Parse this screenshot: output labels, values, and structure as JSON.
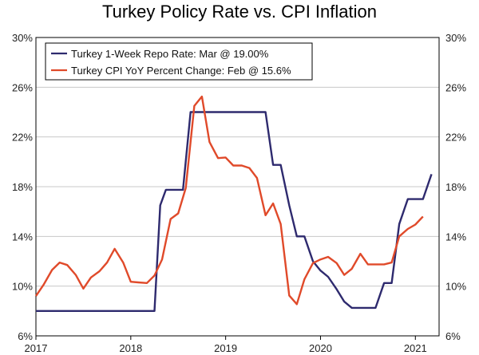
{
  "chart_data": {
    "type": "line",
    "title": "Turkey Policy Rate vs. CPI Inflation",
    "xlabel": "",
    "ylabel": "",
    "ylim": [
      6,
      30
    ],
    "yticks": [
      6,
      10,
      14,
      18,
      22,
      26,
      30
    ],
    "ytick_labels": [
      "6%",
      "10%",
      "14%",
      "18%",
      "22%",
      "26%",
      "30%"
    ],
    "xlim": [
      2017,
      2021.25
    ],
    "xticks": [
      2017,
      2018,
      2019,
      2020,
      2021
    ],
    "xtick_labels": [
      "2017",
      "2018",
      "2019",
      "2020",
      "2021"
    ],
    "legend_position": "top-left",
    "series": [
      {
        "name": "Turkey 1-Week Repo Rate: Mar @ 19.00%",
        "color": "#2e2a6e",
        "x": [
          2017.0,
          2018.25,
          2018.31,
          2018.37,
          2018.55,
          2018.63,
          2019.42,
          2019.5,
          2019.58,
          2019.67,
          2019.75,
          2019.83,
          2019.92,
          2020.0,
          2020.08,
          2020.17,
          2020.25,
          2020.33,
          2020.58,
          2020.67,
          2020.75,
          2020.83,
          2020.92,
          2021.08,
          2021.17
        ],
        "values": [
          8.0,
          8.0,
          16.5,
          17.75,
          17.75,
          24.0,
          24.0,
          19.75,
          19.75,
          16.5,
          14.0,
          14.0,
          12.0,
          11.25,
          10.75,
          9.75,
          8.75,
          8.25,
          8.25,
          10.25,
          10.25,
          15.0,
          17.0,
          17.0,
          19.0
        ]
      },
      {
        "name": "Turkey CPI YoY Percent Change: Feb @ 15.6%",
        "color": "#e04a2a",
        "x": [
          2017.0,
          2017.08,
          2017.17,
          2017.25,
          2017.33,
          2017.42,
          2017.5,
          2017.58,
          2017.67,
          2017.75,
          2017.83,
          2017.92,
          2018.0,
          2018.08,
          2018.17,
          2018.25,
          2018.33,
          2018.42,
          2018.5,
          2018.58,
          2018.67,
          2018.75,
          2018.83,
          2018.92,
          2019.0,
          2019.08,
          2019.17,
          2019.25,
          2019.33,
          2019.42,
          2019.5,
          2019.58,
          2019.67,
          2019.75,
          2019.83,
          2019.92,
          2020.0,
          2020.08,
          2020.17,
          2020.25,
          2020.33,
          2020.42,
          2020.5,
          2020.58,
          2020.67,
          2020.75,
          2020.83,
          2020.92,
          2021.0,
          2021.08
        ],
        "values": [
          9.2,
          10.1,
          11.3,
          11.9,
          11.7,
          10.9,
          9.8,
          10.7,
          11.2,
          11.9,
          13.0,
          11.9,
          10.35,
          10.3,
          10.25,
          10.85,
          12.15,
          15.4,
          15.85,
          17.9,
          24.5,
          25.25,
          21.6,
          20.3,
          20.35,
          19.7,
          19.7,
          19.5,
          18.7,
          15.7,
          16.65,
          15.0,
          9.25,
          8.55,
          10.55,
          11.85,
          12.15,
          12.35,
          11.85,
          10.9,
          11.4,
          12.6,
          11.75,
          11.75,
          11.75,
          11.9,
          14.0,
          14.6,
          14.95,
          15.6
        ]
      }
    ]
  }
}
